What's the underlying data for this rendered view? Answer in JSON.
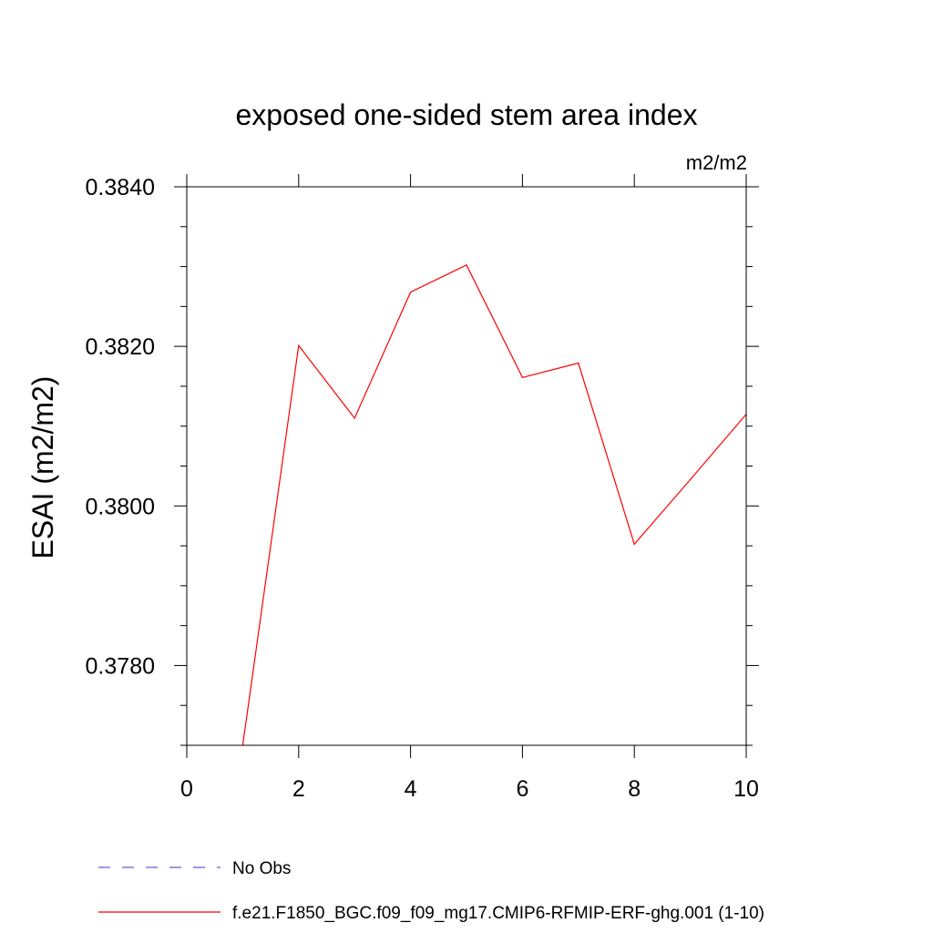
{
  "chart_data": {
    "type": "line",
    "title": "exposed one-sided stem area index",
    "units": "m2/m2",
    "ylabel": "ESAI  (m2/m2)",
    "xlabel": "",
    "xlim": [
      0,
      10
    ],
    "ylim": [
      0.377,
      0.384
    ],
    "xticks": [
      0,
      2,
      4,
      6,
      8,
      10
    ],
    "xtick_labels": [
      "0",
      "2",
      "4",
      "6",
      "8",
      "10"
    ],
    "yticks": [
      0.378,
      0.38,
      0.382,
      0.384
    ],
    "ytick_labels": [
      "0.3780",
      "0.3800",
      "0.3820",
      "0.3840"
    ],
    "grid": false,
    "legend_position": "bottom",
    "series": [
      {
        "name": "No Obs",
        "color": "#6a5acd",
        "style": "dashed",
        "x": [],
        "y": []
      },
      {
        "name": "f.e21.F1850_BGC.f09_f09_mg17.CMIP6-RFMIP-ERF-ghg.001 (1-10)",
        "color": "#ff0000",
        "style": "solid",
        "x": [
          1,
          2,
          3,
          4,
          5,
          6,
          7,
          8,
          9,
          10
        ],
        "y": [
          0.377,
          0.38201,
          0.3811,
          0.38268,
          0.38302,
          0.38161,
          0.38179,
          0.37952,
          0.38033,
          0.38115
        ]
      }
    ]
  }
}
